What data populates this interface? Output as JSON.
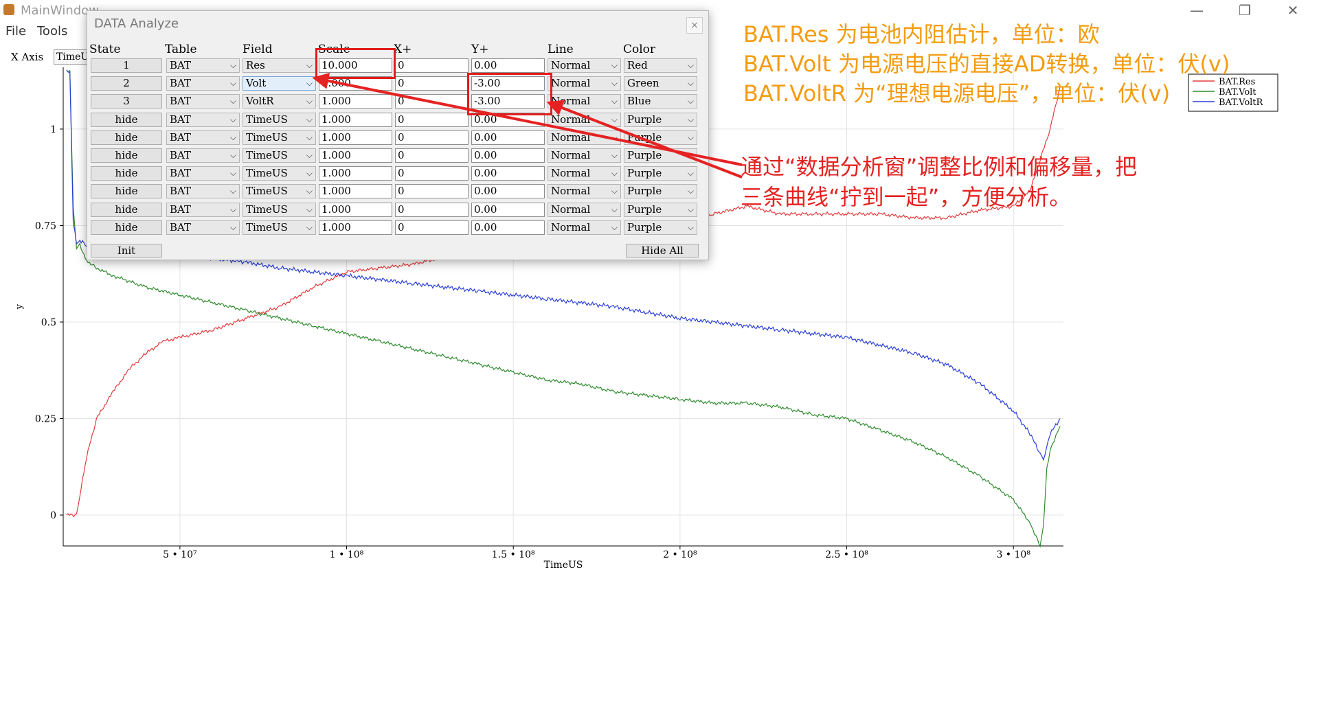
{
  "window": {
    "title": "MainWindow",
    "controls": [
      "—",
      "❐",
      "✕"
    ]
  },
  "menubar": {
    "items": [
      "File",
      "Tools"
    ]
  },
  "xaxis_selector": {
    "label": "X Axis",
    "value": "TimeU"
  },
  "dialog": {
    "title": "DATA Analyze",
    "close": "×",
    "headers": [
      "State",
      "Table",
      "Field",
      "Scale",
      "X+",
      "Y+",
      "Line",
      "Color"
    ],
    "rows": [
      {
        "state": "1",
        "table": "BAT",
        "field": "Res",
        "scale": "10.000",
        "xoff": "0",
        "yoff": "0.00",
        "line": "Normal",
        "color": "Red"
      },
      {
        "state": "2",
        "table": "BAT",
        "field": "Volt",
        "scale": "1.000",
        "xoff": "0",
        "yoff": "-3.00",
        "line": "Normal",
        "color": "Green"
      },
      {
        "state": "3",
        "table": "BAT",
        "field": "VoltR",
        "scale": "1.000",
        "xoff": "0",
        "yoff": "-3.00",
        "line": "Normal",
        "color": "Blue"
      },
      {
        "state": "hide",
        "table": "BAT",
        "field": "TimeUS",
        "scale": "1.000",
        "xoff": "0",
        "yoff": "0.00",
        "line": "Normal",
        "color": "Purple"
      },
      {
        "state": "hide",
        "table": "BAT",
        "field": "TimeUS",
        "scale": "1.000",
        "xoff": "0",
        "yoff": "0.00",
        "line": "Normal",
        "color": "Purple"
      },
      {
        "state": "hide",
        "table": "BAT",
        "field": "TimeUS",
        "scale": "1.000",
        "xoff": "0",
        "yoff": "0.00",
        "line": "Normal",
        "color": "Purple"
      },
      {
        "state": "hide",
        "table": "BAT",
        "field": "TimeUS",
        "scale": "1.000",
        "xoff": "0",
        "yoff": "0.00",
        "line": "Normal",
        "color": "Purple"
      },
      {
        "state": "hide",
        "table": "BAT",
        "field": "TimeUS",
        "scale": "1.000",
        "xoff": "0",
        "yoff": "0.00",
        "line": "Normal",
        "color": "Purple"
      },
      {
        "state": "hide",
        "table": "BAT",
        "field": "TimeUS",
        "scale": "1.000",
        "xoff": "0",
        "yoff": "0.00",
        "line": "Normal",
        "color": "Purple"
      },
      {
        "state": "hide",
        "table": "BAT",
        "field": "TimeUS",
        "scale": "1.000",
        "xoff": "0",
        "yoff": "0.00",
        "line": "Normal",
        "color": "Purple"
      }
    ],
    "init_label": "Init",
    "hide_all_label": "Hide All"
  },
  "annotations": {
    "lines": [
      "BAT.Res 为电池内阻估计，单位：欧",
      "BAT.Volt 为电源电压的直接AD转换，单位：伏(v)",
      "BAT.VoltR 为“理想电源电压”，单位：伏(v)"
    ],
    "note": [
      "通过“数据分析窗”调整比例和偏移量，把",
      "三条曲线“拧到一起”，方便分析。"
    ],
    "color": "#e52222"
  },
  "chart_data": {
    "type": "line",
    "title": "",
    "xlabel": "TimeUS",
    "ylabel": "y",
    "xlim": [
      15000000,
      315000000
    ],
    "ylim": [
      -0.08,
      1.16
    ],
    "x_ticks": [
      50000000,
      100000000,
      150000000,
      200000000,
      250000000,
      300000000
    ],
    "x_tick_labels": [
      "5 • 10⁷",
      "1 • 10⁸",
      "1.5 • 10⁸",
      "2 • 10⁸",
      "2.5 • 10⁸",
      "3 • 10⁸"
    ],
    "y_ticks": [
      0,
      0.25,
      0.5,
      0.75,
      1
    ],
    "y_tick_labels": [
      "0",
      "0.25",
      "0.5",
      "0.75",
      "1"
    ],
    "grid": true,
    "legend_position": "top-right",
    "series": [
      {
        "name": "BAT.Res",
        "color": "#e23b3b",
        "x": [
          16000000,
          19000000,
          20000000,
          22000000,
          25000000,
          30000000,
          35000000,
          40000000,
          45000000,
          50000000,
          60000000,
          70000000,
          80000000,
          90000000,
          100000000,
          110000000,
          120000000,
          130000000,
          140000000,
          150000000,
          160000000,
          170000000,
          180000000,
          190000000,
          200000000,
          210000000,
          220000000,
          230000000,
          240000000,
          250000000,
          260000000,
          270000000,
          280000000,
          290000000,
          300000000,
          305000000,
          308000000,
          311000000,
          314000000
        ],
        "values": [
          0.0,
          0.0,
          0.05,
          0.15,
          0.25,
          0.32,
          0.38,
          0.42,
          0.45,
          0.46,
          0.48,
          0.51,
          0.54,
          0.59,
          0.63,
          0.64,
          0.65,
          0.67,
          0.7,
          0.74,
          0.75,
          0.76,
          0.77,
          0.77,
          0.76,
          0.78,
          0.8,
          0.78,
          0.78,
          0.78,
          0.78,
          0.77,
          0.77,
          0.79,
          0.8,
          0.84,
          0.92,
          1.0,
          1.11
        ]
      },
      {
        "name": "BAT.Volt",
        "color": "#2e8b2e",
        "x": [
          16000000,
          17000000,
          18000000,
          19000000,
          20000000,
          22000000,
          25000000,
          30000000,
          40000000,
          50000000,
          60000000,
          70000000,
          80000000,
          90000000,
          100000000,
          110000000,
          120000000,
          130000000,
          140000000,
          150000000,
          160000000,
          170000000,
          180000000,
          190000000,
          200000000,
          210000000,
          220000000,
          230000000,
          240000000,
          250000000,
          260000000,
          270000000,
          280000000,
          290000000,
          300000000,
          305000000,
          308000000,
          309000000,
          310000000,
          311000000,
          314000000
        ],
        "values": [
          1.15,
          1.15,
          0.8,
          0.69,
          0.7,
          0.66,
          0.64,
          0.62,
          0.59,
          0.57,
          0.55,
          0.53,
          0.51,
          0.49,
          0.47,
          0.45,
          0.43,
          0.41,
          0.39,
          0.37,
          0.35,
          0.34,
          0.32,
          0.31,
          0.3,
          0.29,
          0.29,
          0.28,
          0.26,
          0.25,
          0.22,
          0.19,
          0.15,
          0.1,
          0.04,
          -0.02,
          -0.08,
          -0.03,
          0.12,
          0.17,
          0.23
        ]
      },
      {
        "name": "BAT.VoltR",
        "color": "#2a3fd6",
        "x": [
          16000000,
          17000000,
          18000000,
          19000000,
          20000000,
          22000000,
          25000000,
          30000000,
          40000000,
          50000000,
          60000000,
          70000000,
          80000000,
          90000000,
          100000000,
          110000000,
          120000000,
          130000000,
          140000000,
          150000000,
          160000000,
          170000000,
          180000000,
          190000000,
          200000000,
          210000000,
          220000000,
          230000000,
          240000000,
          250000000,
          260000000,
          270000000,
          280000000,
          290000000,
          300000000,
          305000000,
          308000000,
          309000000,
          310000000,
          311000000,
          314000000
        ],
        "values": [
          1.15,
          1.15,
          0.76,
          0.7,
          0.71,
          0.7,
          0.7,
          0.69,
          0.685,
          0.675,
          0.665,
          0.655,
          0.64,
          0.63,
          0.62,
          0.61,
          0.6,
          0.59,
          0.58,
          0.57,
          0.56,
          0.55,
          0.54,
          0.525,
          0.51,
          0.5,
          0.49,
          0.48,
          0.47,
          0.46,
          0.44,
          0.42,
          0.39,
          0.34,
          0.27,
          0.21,
          0.16,
          0.14,
          0.18,
          0.21,
          0.25
        ]
      }
    ]
  }
}
